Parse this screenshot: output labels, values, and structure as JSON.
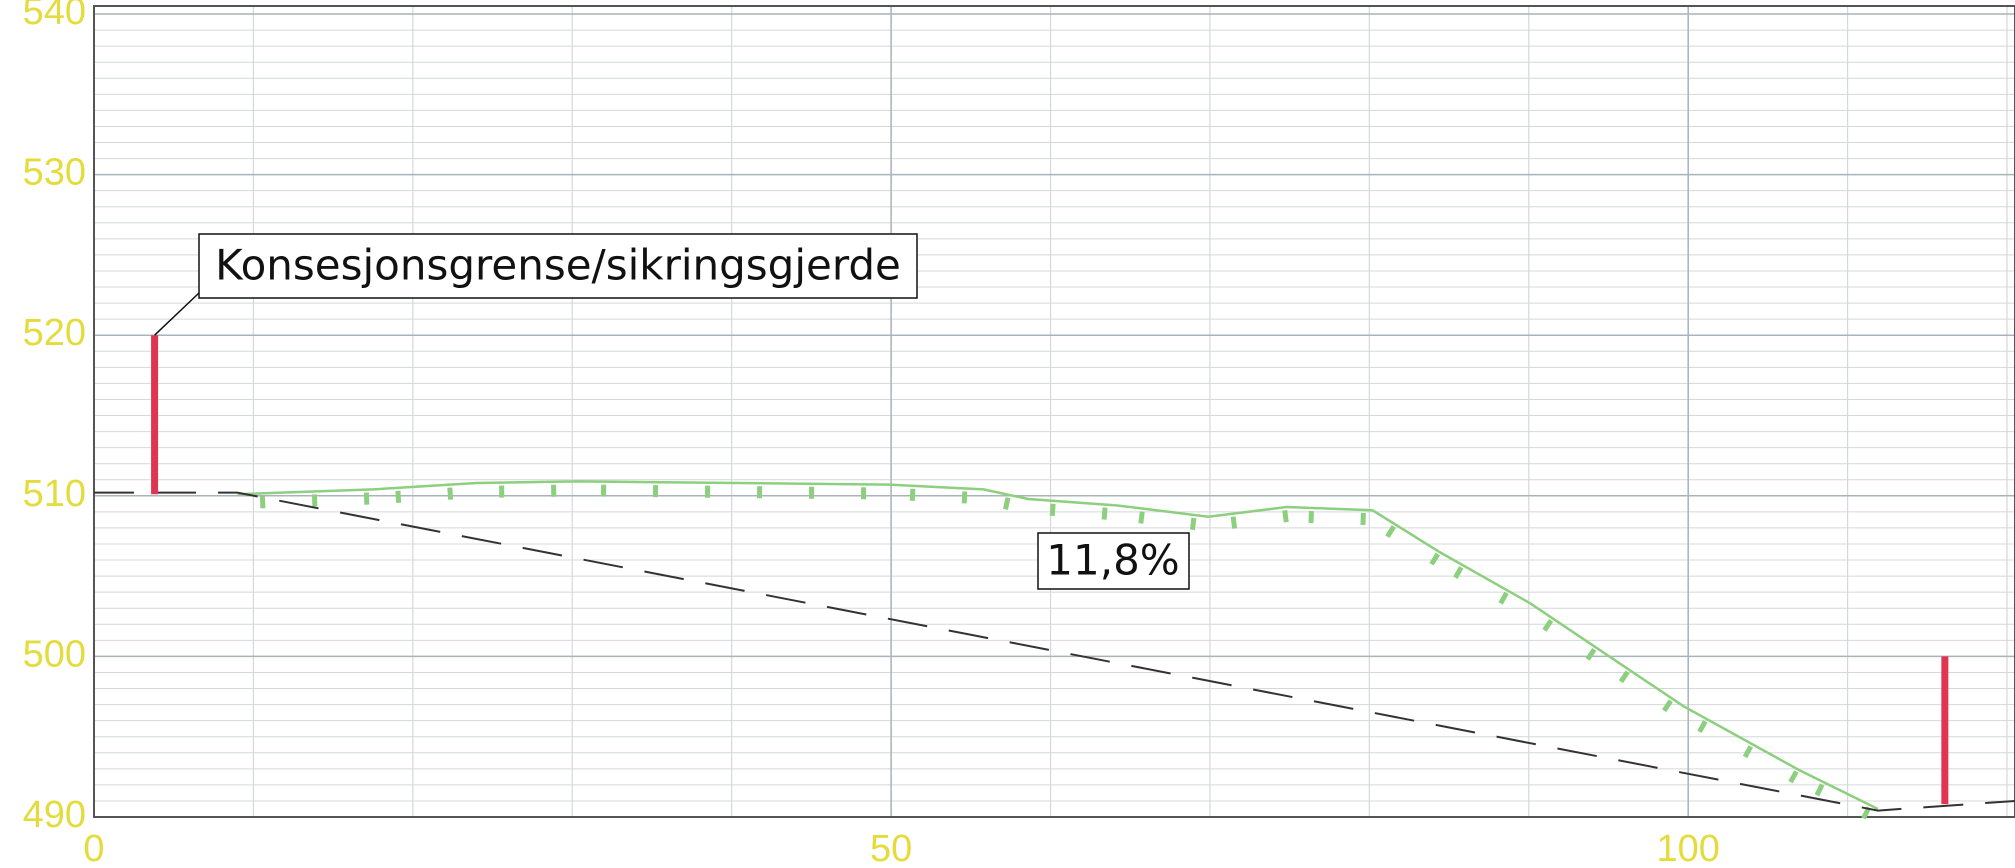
{
  "chart_data": {
    "type": "line",
    "xlim": [
      0,
      120.5
    ],
    "ylim": [
      490,
      540.5
    ],
    "xticks": [
      0,
      50,
      100
    ],
    "yticks": [
      490,
      500,
      510,
      520,
      530,
      540
    ],
    "grid": true,
    "series": [
      {
        "color": "#8ccf7e",
        "style": "solid",
        "x": [
          9.0,
          17.5,
          24.0,
          30.4,
          49.8,
          55.8,
          58.6,
          64.2,
          69.9,
          74.8,
          80.2,
          84.4,
          90.1,
          94.9,
          99.7,
          107.0,
          111.9
        ],
        "values": [
          510.1,
          510.4,
          510.8,
          510.9,
          510.7,
          510.4,
          509.8,
          509.4,
          508.7,
          509.3,
          509.1,
          506.5,
          503.3,
          500.1,
          496.9,
          492.9,
          490.5
        ]
      },
      {
        "color": "#333333",
        "style": "dashed",
        "x": [
          0,
          9.0,
          111.9,
          120.5
        ],
        "values": [
          510.2,
          510.2,
          490.4,
          491.0
        ]
      }
    ],
    "fences": [
      {
        "color": "#e0354f",
        "x": 3.8,
        "y": [
          510.1,
          520
        ]
      },
      {
        "color": "#e0354f",
        "x": 116.1,
        "y": [
          490.8,
          500
        ]
      }
    ],
    "annotations": [
      "Konsesjonsgrense/sikringsgjerde",
      "11,8%"
    ]
  }
}
